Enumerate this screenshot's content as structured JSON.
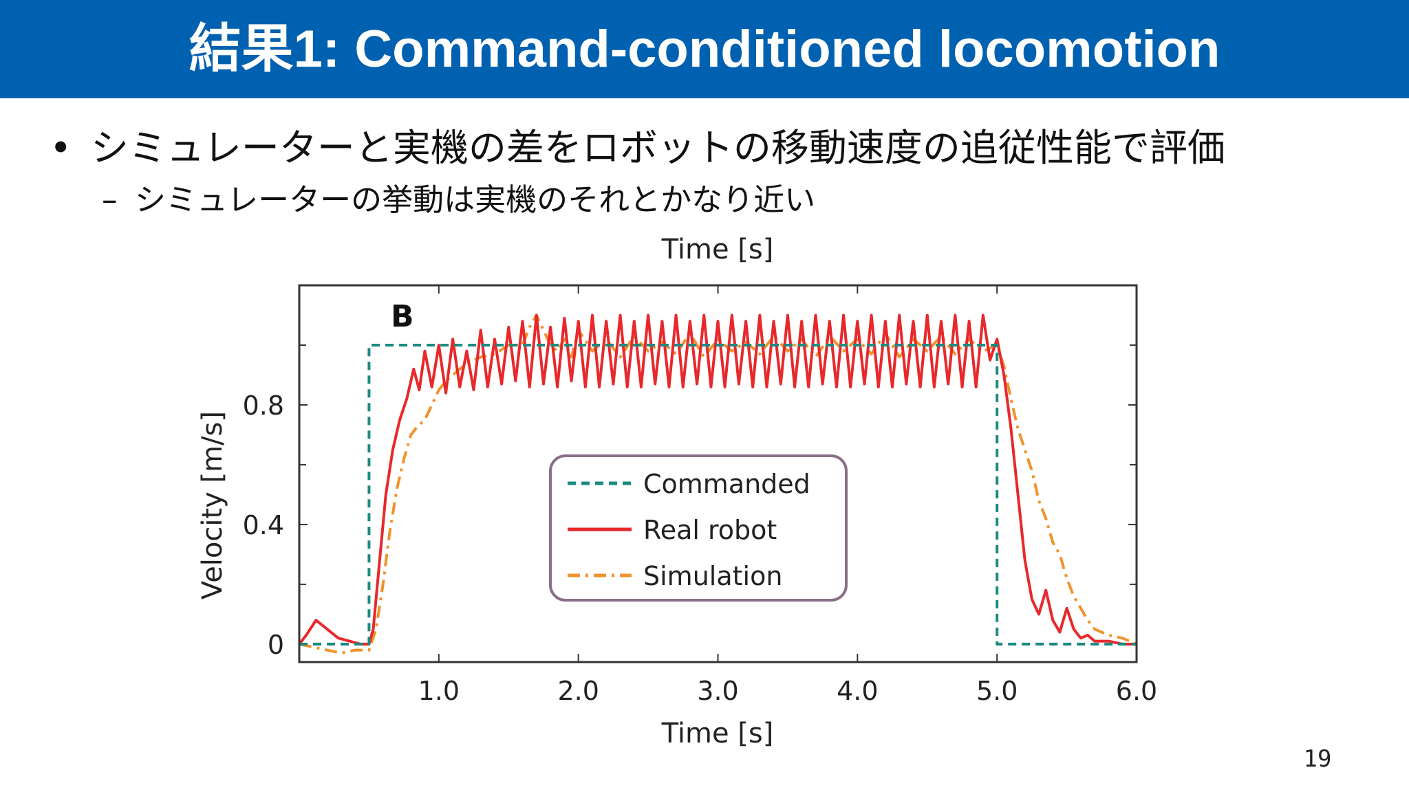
{
  "slide": {
    "title": "結果1: Command-conditioned locomotion",
    "bullet": "シミュレーターと実機の差をロボットの移動速度の追従性能で評価",
    "sub_bullet": "シミュレーターの挙動は実機のそれとかなり近い",
    "bullet_marker": "•",
    "sub_marker": "–",
    "page_number": "19"
  },
  "chart_data": {
    "type": "line",
    "panel_label": "B",
    "title": "Time [s]",
    "xlabel": "Time [s]",
    "ylabel": "Velocity [m/s]",
    "xlim": [
      0.0,
      6.0
    ],
    "ylim": [
      -0.06,
      1.2
    ],
    "xticks": [
      1.0,
      2.0,
      3.0,
      4.0,
      5.0,
      6.0
    ],
    "xtick_labels": [
      "1.0",
      "2.0",
      "3.0",
      "4.0",
      "5.0",
      "6.0"
    ],
    "yticks": [
      0,
      0.4,
      0.8
    ],
    "ytick_labels": [
      "0",
      "0.4",
      "0.8"
    ],
    "legend_position": "center",
    "series": [
      {
        "name": "Commanded",
        "color": "#1a8a80",
        "style": "dashed",
        "x": [
          0.0,
          0.5,
          0.5,
          5.0,
          5.0,
          6.0
        ],
        "y": [
          0.0,
          0.0,
          1.0,
          1.0,
          0.0,
          0.0
        ]
      },
      {
        "name": "Real robot",
        "color": "#e8282b",
        "style": "solid",
        "x": [
          0.0,
          0.05,
          0.12,
          0.2,
          0.28,
          0.36,
          0.44,
          0.5,
          0.53,
          0.57,
          0.62,
          0.67,
          0.72,
          0.77,
          0.82,
          0.86,
          0.9,
          0.95,
          1.0,
          1.05,
          1.1,
          1.15,
          1.2,
          1.25,
          1.3,
          1.35,
          1.4,
          1.45,
          1.5,
          1.55,
          1.6,
          1.65,
          1.7,
          1.75,
          1.8,
          1.85,
          1.9,
          1.95,
          2.0,
          2.05,
          2.1,
          2.15,
          2.2,
          2.25,
          2.3,
          2.35,
          2.4,
          2.45,
          2.5,
          2.55,
          2.6,
          2.65,
          2.7,
          2.75,
          2.8,
          2.85,
          2.9,
          2.95,
          3.0,
          3.05,
          3.1,
          3.15,
          3.2,
          3.25,
          3.3,
          3.35,
          3.4,
          3.45,
          3.5,
          3.55,
          3.6,
          3.65,
          3.7,
          3.75,
          3.8,
          3.85,
          3.9,
          3.95,
          4.0,
          4.05,
          4.1,
          4.15,
          4.2,
          4.25,
          4.3,
          4.35,
          4.4,
          4.45,
          4.5,
          4.55,
          4.6,
          4.65,
          4.7,
          4.75,
          4.8,
          4.85,
          4.9,
          4.95,
          5.0,
          5.05,
          5.1,
          5.15,
          5.2,
          5.25,
          5.3,
          5.35,
          5.4,
          5.45,
          5.5,
          5.55,
          5.6,
          5.65,
          5.7,
          5.8,
          5.9,
          6.0
        ],
        "y": [
          0.0,
          0.03,
          0.08,
          0.05,
          0.02,
          0.01,
          0.0,
          0.0,
          0.05,
          0.25,
          0.5,
          0.65,
          0.75,
          0.82,
          0.92,
          0.85,
          0.98,
          0.86,
          1.0,
          0.84,
          1.02,
          0.86,
          0.98,
          0.85,
          1.05,
          0.86,
          1.02,
          0.87,
          1.06,
          0.88,
          1.08,
          0.86,
          1.1,
          0.87,
          1.06,
          0.86,
          1.09,
          0.88,
          1.08,
          0.86,
          1.1,
          0.86,
          1.08,
          0.87,
          1.1,
          0.86,
          1.08,
          0.86,
          1.1,
          0.87,
          1.08,
          0.86,
          1.1,
          0.86,
          1.08,
          0.87,
          1.1,
          0.86,
          1.08,
          0.86,
          1.1,
          0.87,
          1.08,
          0.86,
          1.1,
          0.86,
          1.08,
          0.87,
          1.1,
          0.86,
          1.08,
          0.86,
          1.1,
          0.87,
          1.08,
          0.86,
          1.1,
          0.86,
          1.08,
          0.87,
          1.1,
          0.86,
          1.08,
          0.86,
          1.1,
          0.87,
          1.08,
          0.86,
          1.1,
          0.86,
          1.08,
          0.87,
          1.1,
          0.86,
          1.08,
          0.86,
          1.1,
          0.95,
          1.02,
          0.9,
          0.72,
          0.5,
          0.28,
          0.15,
          0.1,
          0.18,
          0.08,
          0.04,
          0.12,
          0.05,
          0.02,
          0.03,
          0.01,
          0.01,
          0.0,
          0.0
        ]
      },
      {
        "name": "Simulation",
        "color": "#f0922c",
        "style": "dashdot",
        "x": [
          0.0,
          0.1,
          0.2,
          0.3,
          0.4,
          0.5,
          0.55,
          0.6,
          0.65,
          0.7,
          0.75,
          0.8,
          0.85,
          0.9,
          0.95,
          1.0,
          1.05,
          1.1,
          1.15,
          1.2,
          1.3,
          1.4,
          1.5,
          1.6,
          1.65,
          1.7,
          1.75,
          1.8,
          1.85,
          1.9,
          1.95,
          2.0,
          2.1,
          2.2,
          2.3,
          2.4,
          2.5,
          2.6,
          2.7,
          2.8,
          2.9,
          3.0,
          3.1,
          3.2,
          3.3,
          3.4,
          3.5,
          3.6,
          3.7,
          3.8,
          3.9,
          4.0,
          4.1,
          4.2,
          4.3,
          4.4,
          4.5,
          4.6,
          4.7,
          4.8,
          4.9,
          5.0,
          5.05,
          5.1,
          5.15,
          5.2,
          5.25,
          5.3,
          5.35,
          5.4,
          5.45,
          5.5,
          5.55,
          5.6,
          5.65,
          5.7,
          5.8,
          5.9,
          6.0
        ],
        "y": [
          0.0,
          -0.01,
          -0.02,
          -0.03,
          -0.02,
          -0.02,
          0.05,
          0.2,
          0.38,
          0.52,
          0.62,
          0.7,
          0.73,
          0.75,
          0.8,
          0.85,
          0.88,
          0.9,
          0.92,
          0.94,
          0.96,
          0.97,
          1.0,
          1.0,
          1.06,
          1.1,
          1.05,
          1.0,
          0.98,
          1.02,
          0.96,
          1.05,
          0.98,
          1.02,
          0.96,
          1.03,
          0.98,
          1.01,
          0.97,
          1.04,
          0.96,
          1.02,
          0.98,
          1.01,
          0.97,
          1.03,
          0.98,
          1.02,
          0.96,
          1.03,
          0.98,
          1.02,
          0.97,
          1.04,
          0.96,
          1.02,
          0.98,
          1.03,
          0.97,
          1.02,
          0.98,
          1.0,
          0.93,
          0.82,
          0.72,
          0.65,
          0.58,
          0.48,
          0.42,
          0.34,
          0.3,
          0.22,
          0.16,
          0.12,
          0.08,
          0.05,
          0.03,
          0.02,
          0.0
        ]
      }
    ]
  }
}
